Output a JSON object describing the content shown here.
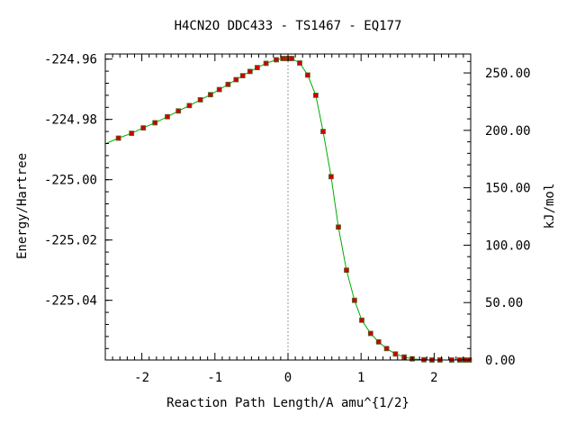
{
  "chart_data": {
    "type": "line",
    "title": "H4CN2O   DDC433 - TS1467 - EQ177",
    "xlabel": "Reaction Path Length/A amu^{1/2}",
    "ylabel": "Energy/Hartree",
    "y2label": "kJ/mol",
    "xlim": [
      -2.5,
      2.5
    ],
    "ylim": [
      -225.0598,
      -224.9583
    ],
    "y2lim": [
      0,
      266.5
    ],
    "x_ticks": [
      -2,
      -1,
      0,
      1,
      2
    ],
    "x_tick_labels": [
      "-2",
      "-1",
      "0",
      "1",
      "2"
    ],
    "y_ticks": [
      -224.96,
      -224.98,
      -225.0,
      -225.02,
      -225.04
    ],
    "y_tick_labels": [
      "-224.96",
      "-224.98",
      "-225.00",
      "-225.02",
      "-225.04"
    ],
    "y2_ticks": [
      250,
      200,
      150,
      100,
      50,
      0
    ],
    "y2_tick_labels": [
      "250.00",
      "200.00",
      "150.00",
      "100.00",
      "50.00",
      "0.00"
    ],
    "grid": false,
    "ts_marker_x": 0,
    "line_color": "#00aa00",
    "marker_color": "#cc0000",
    "marker_edge_color": "#556b2f",
    "series": [
      {
        "x": [
          -2.32,
          -2.14,
          -1.98,
          -1.82,
          -1.65,
          -1.5,
          -1.35,
          -1.2,
          -1.06,
          -0.94,
          -0.82,
          -0.71,
          -0.62,
          -0.52,
          -0.42,
          -0.3,
          -0.16,
          -0.07,
          -0.03,
          0.0,
          0.02,
          0.05,
          0.16,
          0.27,
          0.38,
          0.48,
          0.59,
          0.69,
          0.8,
          0.91,
          1.01,
          1.13,
          1.24,
          1.35,
          1.47,
          1.59,
          1.7,
          1.86,
          1.97,
          2.08,
          2.24,
          2.35,
          2.42,
          2.48
        ],
        "y": [
          -224.9862,
          -224.9846,
          -224.9828,
          -224.9811,
          -224.9791,
          -224.9772,
          -224.9754,
          -224.9735,
          -224.9718,
          -224.9701,
          -224.9684,
          -224.9668,
          -224.9655,
          -224.9641,
          -224.9628,
          -224.9614,
          -224.9602,
          -224.9598,
          -224.9598,
          -224.9598,
          -224.9598,
          -224.9598,
          -224.9613,
          -224.9653,
          -224.972,
          -224.984,
          -224.999,
          -225.0157,
          -225.03,
          -225.04,
          -225.0466,
          -225.051,
          -225.0538,
          -225.056,
          -225.0578,
          -225.0588,
          -225.0594,
          -225.0597,
          -225.0598,
          -225.0598,
          -225.0598,
          -225.0598,
          -225.0598,
          -225.0598
        ]
      }
    ]
  }
}
